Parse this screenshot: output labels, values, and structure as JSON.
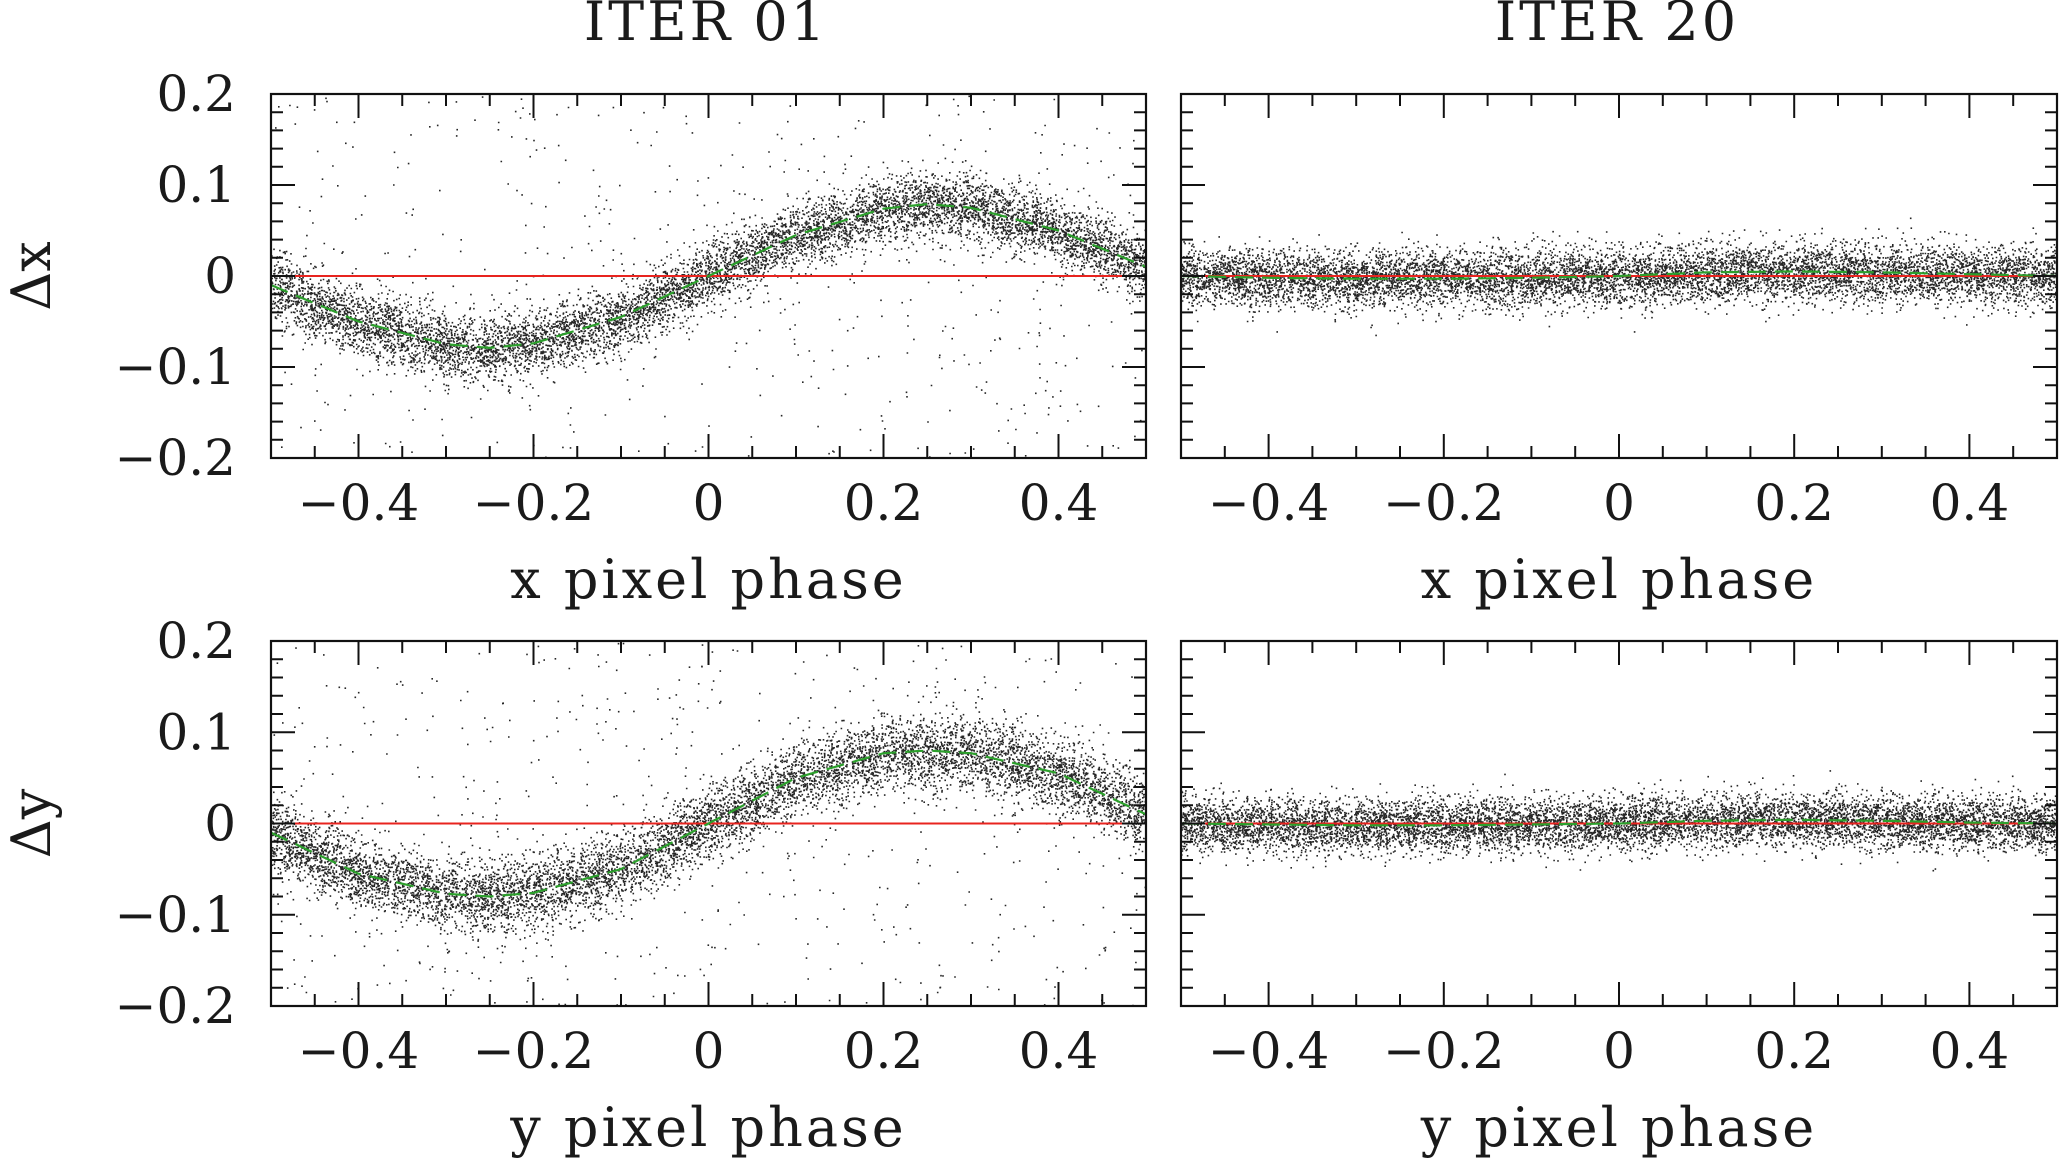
{
  "columns": [
    "ITER 01",
    "ITER 20"
  ],
  "chart_data": [
    {
      "type": "scatter",
      "title": "ITER 01",
      "xlabel": "x pixel phase",
      "ylabel": "Δx",
      "xlim": [
        -0.5,
        0.5
      ],
      "ylim": [
        -0.2,
        0.2
      ],
      "xticks": [
        "−0.4",
        "−0.2",
        "0",
        "0.2",
        "0.4"
      ],
      "yticks": [
        "0.2",
        "0.1",
        "0",
        "−0.1",
        "−0.2"
      ],
      "reference_line": {
        "y": 0,
        "color": "#e8241f"
      },
      "fit_curve": {
        "style": "dashed",
        "color": "#2ca02c",
        "x": [
          -0.5,
          -0.4,
          -0.3,
          -0.25,
          -0.2,
          -0.1,
          0,
          0.1,
          0.2,
          0.25,
          0.3,
          0.4,
          0.5
        ],
        "y": [
          -0.01,
          -0.05,
          -0.075,
          -0.079,
          -0.074,
          -0.045,
          0.0,
          0.045,
          0.074,
          0.079,
          0.075,
          0.05,
          0.01
        ]
      },
      "scatter_band": {
        "color": "#000000",
        "core_spread_y": 0.018,
        "outlier_fraction": 0.06
      }
    },
    {
      "type": "scatter",
      "title": "ITER 20",
      "xlabel": "x pixel phase",
      "ylabel": "",
      "xlim": [
        -0.5,
        0.5
      ],
      "ylim": [
        -0.2,
        0.2
      ],
      "xticks": [
        "−0.4",
        "−0.2",
        "0",
        "0.2",
        "0.4"
      ],
      "yticks": [],
      "reference_line": {
        "y": 0,
        "color": "#e8241f"
      },
      "fit_curve": {
        "style": "dashed",
        "color": "#2ca02c",
        "x": [
          -0.5,
          -0.4,
          -0.3,
          -0.2,
          -0.1,
          0,
          0.1,
          0.2,
          0.3,
          0.4,
          0.5
        ],
        "y": [
          0.0,
          -0.002,
          -0.003,
          -0.003,
          -0.002,
          0.0,
          0.004,
          0.005,
          0.004,
          0.002,
          0.0
        ]
      },
      "scatter_band": {
        "color": "#000000",
        "core_spread_y": 0.016,
        "outlier_fraction": 0.0
      }
    },
    {
      "type": "scatter",
      "title": "",
      "xlabel": "y pixel phase",
      "ylabel": "Δy",
      "xlim": [
        -0.5,
        0.5
      ],
      "ylim": [
        -0.2,
        0.2
      ],
      "xticks": [
        "−0.4",
        "−0.2",
        "0",
        "0.2",
        "0.4"
      ],
      "yticks": [
        "0.2",
        "0.1",
        "0",
        "−0.1",
        "−0.2"
      ],
      "reference_line": {
        "y": 0,
        "color": "#e8241f"
      },
      "fit_curve": {
        "style": "dashed",
        "color": "#2ca02c",
        "x": [
          -0.5,
          -0.4,
          -0.3,
          -0.25,
          -0.2,
          -0.1,
          0,
          0.1,
          0.2,
          0.25,
          0.3,
          0.4,
          0.5
        ],
        "y": [
          -0.01,
          -0.055,
          -0.077,
          -0.08,
          -0.076,
          -0.05,
          0.0,
          0.05,
          0.077,
          0.08,
          0.077,
          0.055,
          0.01
        ]
      },
      "scatter_band": {
        "color": "#000000",
        "core_spread_y": 0.02,
        "outlier_fraction": 0.07
      }
    },
    {
      "type": "scatter",
      "title": "",
      "xlabel": "y pixel phase",
      "ylabel": "",
      "xlim": [
        -0.5,
        0.5
      ],
      "ylim": [
        -0.2,
        0.2
      ],
      "xticks": [
        "−0.4",
        "−0.2",
        "0",
        "0.2",
        "0.4"
      ],
      "yticks": [],
      "reference_line": {
        "y": 0,
        "color": "#e8241f"
      },
      "fit_curve": {
        "style": "dashed",
        "color": "#2ca02c",
        "x": [
          -0.5,
          -0.4,
          -0.3,
          -0.2,
          -0.1,
          0,
          0.1,
          0.2,
          0.3,
          0.4,
          0.5
        ],
        "y": [
          0.0,
          -0.001,
          -0.002,
          -0.002,
          -0.001,
          0.0,
          0.003,
          0.004,
          0.003,
          0.001,
          0.0
        ]
      },
      "scatter_band": {
        "color": "#000000",
        "core_spread_y": 0.015,
        "outlier_fraction": 0.0
      }
    }
  ]
}
